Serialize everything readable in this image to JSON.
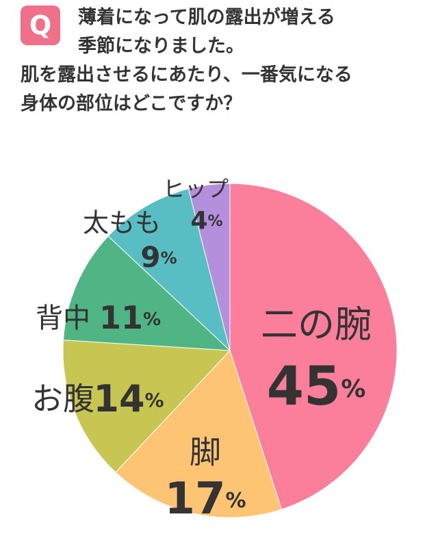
{
  "question": {
    "badge": "Q",
    "lines": [
      "薄着になって肌の露出が増える",
      "季節になりました。",
      "肌を露出させるにあたり、一番気になる",
      "身体の部位はどこですか？"
    ]
  },
  "colors": {
    "badge": "#f0708a",
    "text": "#333333"
  },
  "chart_data": {
    "type": "pie",
    "unit": "%",
    "slices": [
      {
        "label": "二の腕",
        "value": 45,
        "color": "#fb7f9b"
      },
      {
        "label": "脚",
        "value": 17,
        "color": "#fdc474"
      },
      {
        "label": "お腹",
        "value": 14,
        "color": "#c7c653"
      },
      {
        "label": "背中",
        "value": 11,
        "color": "#4fb584"
      },
      {
        "label": "太もも",
        "value": 9,
        "color": "#59bec3"
      },
      {
        "label": "ヒップ",
        "value": 4,
        "color": "#b48fdb"
      }
    ],
    "title": "",
    "xlabel": "",
    "ylabel": ""
  }
}
